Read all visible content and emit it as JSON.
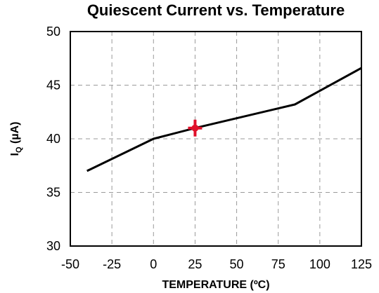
{
  "chart_data": {
    "type": "line",
    "title": "Quiescent Current vs. Temperature",
    "xlabel": "TEMPERATURE  (ºC)",
    "ylabel_main": "I",
    "ylabel_sub": "Q",
    "ylabel_unit": " (µA)",
    "xlim": [
      -50,
      125
    ],
    "ylim": [
      30,
      50
    ],
    "xticks": [
      -50,
      -25,
      0,
      25,
      50,
      75,
      100,
      125
    ],
    "yticks": [
      30,
      35,
      40,
      45,
      50
    ],
    "grid": true,
    "series": [
      {
        "x": [
          -40,
          0,
          25,
          85,
          125
        ],
        "y": [
          37.0,
          40.0,
          41.0,
          43.2,
          46.6
        ]
      }
    ],
    "marker": {
      "x": 25,
      "y": 41.0,
      "color": "#e0102a"
    }
  }
}
